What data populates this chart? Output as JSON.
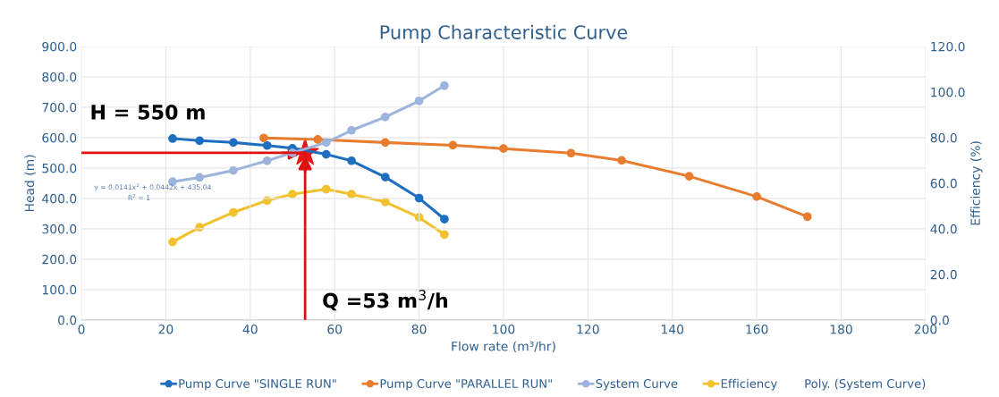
{
  "chart_data": {
    "type": "line",
    "title": "Pump Characteristic Curve",
    "xlabel": "Flow rate (m³/hr)",
    "ylabel": "Head (m)",
    "y2label": "Efficiency (%)",
    "xlim": [
      0,
      200
    ],
    "xticks": [
      0,
      20,
      40,
      60,
      80,
      100,
      120,
      140,
      160,
      180,
      200
    ],
    "ylim": [
      0,
      900
    ],
    "yticks": [
      {
        "value": 0,
        "label": "0.0"
      },
      {
        "value": 100,
        "label": "100.0"
      },
      {
        "value": 200,
        "label": "200.0"
      },
      {
        "value": 300,
        "label": "300.0"
      },
      {
        "value": 400,
        "label": "400.0"
      },
      {
        "value": 500,
        "label": "500.0"
      },
      {
        "value": 600,
        "label": "600.0"
      },
      {
        "value": 700,
        "label": "700.0"
      },
      {
        "value": 800,
        "label": "800.0"
      },
      {
        "value": 900,
        "label": "900.0"
      }
    ],
    "y2lim": [
      0,
      120
    ],
    "y2ticks": [
      {
        "value": 0,
        "label": "0.0"
      },
      {
        "value": 20,
        "label": "20.0"
      },
      {
        "value": 40,
        "label": "40.0"
      },
      {
        "value": 60,
        "label": "60.0"
      },
      {
        "value": 80,
        "label": "80.0"
      },
      {
        "value": 100,
        "label": "100.0"
      },
      {
        "value": 120,
        "label": "120.0"
      }
    ],
    "grid": true,
    "legend": "bottom",
    "marker": "circle",
    "line_style": "solid",
    "series": [
      {
        "name": "Pump Curve \"SINGLE RUN\"",
        "color": "#1f6fc0",
        "x": [
          21.6,
          28,
          36,
          44,
          50,
          58,
          64,
          72,
          80,
          86
        ],
        "values": [
          597,
          590,
          584,
          574,
          565,
          545,
          524,
          470,
          401,
          332
        ]
      },
      {
        "name": "Pump Curve \"PARALLEL RUN\"",
        "color": "#e87d2f",
        "x": [
          43.2,
          56,
          72,
          88,
          100,
          116,
          128,
          144,
          160,
          172
        ],
        "values": [
          599,
          594,
          584,
          575,
          564,
          549,
          525,
          473,
          406,
          340
        ]
      },
      {
        "name": "System Curve",
        "color": "#9db4dc",
        "x": [
          21.6,
          28,
          36,
          44,
          50,
          58,
          64,
          72,
          80,
          86
        ],
        "values": [
          455,
          469,
          492,
          524,
          550,
          584,
          624,
          668,
          721,
          771
        ]
      },
      {
        "name": "Efficiency",
        "color": "#f2c12e",
        "axis": "y2",
        "x": [
          21.6,
          28,
          36,
          44,
          50,
          58,
          64,
          72,
          80,
          86
        ],
        "values": [
          34.2,
          40.7,
          47.2,
          52.4,
          55.2,
          57.4,
          55.2,
          51.8,
          45,
          37.5
        ]
      }
    ],
    "ref_lines": [
      {
        "axis": "y",
        "value": 550,
        "label": "H = 550 m",
        "color": "#e01010"
      },
      {
        "axis": "x",
        "value": 53,
        "label": "Q =53 m$^{3}$/h",
        "color": "#e01010"
      }
    ],
    "annotations": [
      "y = 0.0141x$^{2}$ + 0.0442x + 435.04",
      "R$^{2}$ = 1",
      "Poly. (System Curve)"
    ]
  }
}
